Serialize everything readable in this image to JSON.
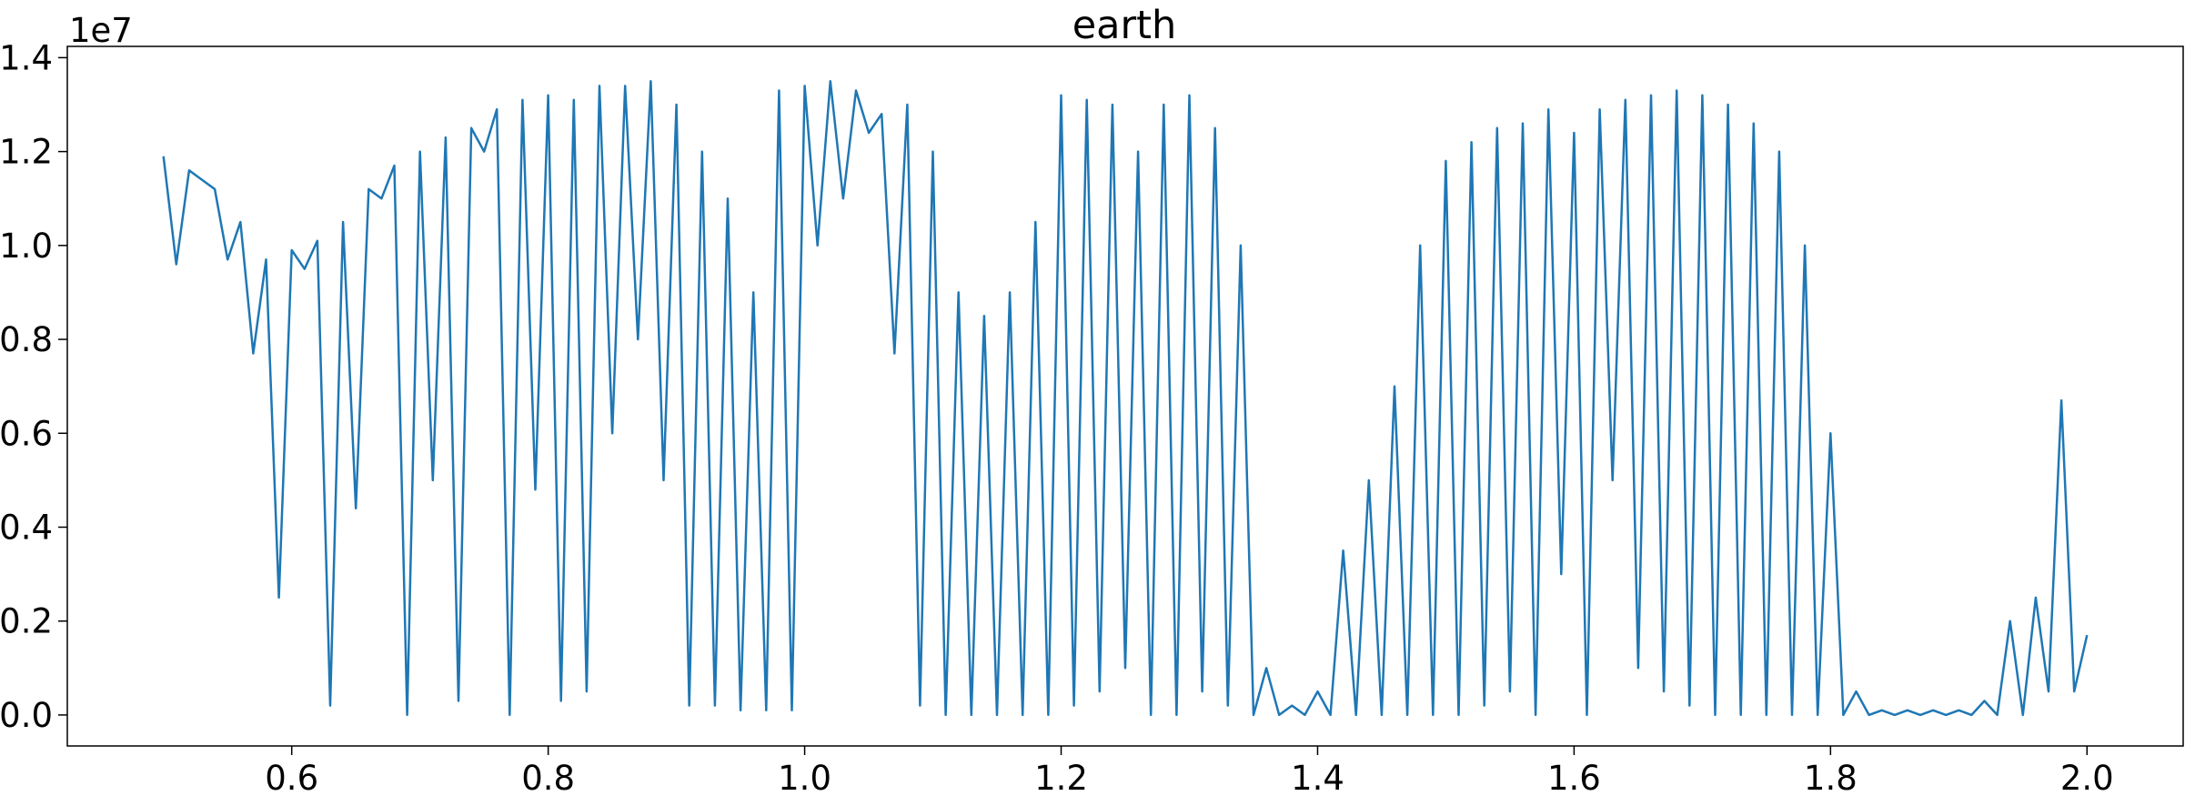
{
  "chart_data": {
    "type": "line",
    "title": "earth",
    "offset_label": "1e7",
    "x": [
      0.5,
      0.51,
      0.52,
      0.53,
      0.54,
      0.55,
      0.56,
      0.57,
      0.58,
      0.59,
      0.6,
      0.61,
      0.62,
      0.63,
      0.64,
      0.65,
      0.66,
      0.67,
      0.68,
      0.69,
      0.7,
      0.71,
      0.72,
      0.73,
      0.74,
      0.75,
      0.76,
      0.77,
      0.78,
      0.79,
      0.8,
      0.81,
      0.82,
      0.83,
      0.84,
      0.85,
      0.86,
      0.87,
      0.88,
      0.89,
      0.9,
      0.91,
      0.92,
      0.93,
      0.94,
      0.95,
      0.96,
      0.97,
      0.98,
      0.99,
      1.0,
      1.01,
      1.02,
      1.03,
      1.04,
      1.05,
      1.06,
      1.07,
      1.08,
      1.09,
      1.1,
      1.11,
      1.12,
      1.13,
      1.14,
      1.15,
      1.16,
      1.17,
      1.18,
      1.19,
      1.2,
      1.21,
      1.22,
      1.23,
      1.24,
      1.25,
      1.26,
      1.27,
      1.28,
      1.29,
      1.3,
      1.31,
      1.32,
      1.33,
      1.34,
      1.35,
      1.36,
      1.37,
      1.38,
      1.39,
      1.4,
      1.41,
      1.42,
      1.43,
      1.44,
      1.45,
      1.46,
      1.47,
      1.48,
      1.49,
      1.5,
      1.51,
      1.52,
      1.53,
      1.54,
      1.55,
      1.56,
      1.57,
      1.58,
      1.59,
      1.6,
      1.61,
      1.62,
      1.63,
      1.64,
      1.65,
      1.66,
      1.67,
      1.68,
      1.69,
      1.7,
      1.71,
      1.72,
      1.73,
      1.74,
      1.75,
      1.76,
      1.77,
      1.78,
      1.79,
      1.8,
      1.81,
      1.82,
      1.83,
      1.84,
      1.85,
      1.86,
      1.87,
      1.88,
      1.89,
      1.9,
      1.91,
      1.92,
      1.93,
      1.94,
      1.95,
      1.96,
      1.97,
      1.98,
      1.99,
      2.0
    ],
    "series": [
      {
        "color": "#1f77b4",
        "values": [
          1.19,
          0.96,
          1.16,
          1.14,
          1.12,
          0.97,
          1.05,
          0.77,
          0.97,
          0.25,
          0.99,
          0.95,
          1.01,
          0.02,
          1.05,
          0.44,
          1.12,
          1.1,
          1.17,
          0.0,
          1.2,
          0.5,
          1.23,
          0.03,
          1.25,
          1.2,
          1.29,
          0.0,
          1.31,
          0.48,
          1.32,
          0.03,
          1.31,
          0.05,
          1.34,
          0.6,
          1.34,
          0.8,
          1.35,
          0.5,
          1.3,
          0.02,
          1.2,
          0.02,
          1.1,
          0.01,
          0.9,
          0.01,
          1.33,
          0.01,
          1.34,
          1.0,
          1.35,
          1.1,
          1.33,
          1.24,
          1.28,
          0.77,
          1.3,
          0.02,
          1.2,
          0.0,
          0.9,
          0.0,
          0.85,
          0.0,
          0.9,
          0.0,
          1.05,
          0.0,
          1.32,
          0.02,
          1.31,
          0.05,
          1.3,
          0.1,
          1.2,
          0.0,
          1.3,
          0.0,
          1.32,
          0.05,
          1.25,
          0.02,
          1.0,
          0.0,
          0.1,
          0.0,
          0.02,
          0.0,
          0.05,
          0.0,
          0.35,
          0.0,
          0.5,
          0.0,
          0.7,
          0.0,
          1.0,
          0.0,
          1.18,
          0.0,
          1.22,
          0.02,
          1.25,
          0.05,
          1.26,
          0.0,
          1.29,
          0.3,
          1.24,
          0.0,
          1.29,
          0.5,
          1.31,
          0.1,
          1.32,
          0.05,
          1.33,
          0.02,
          1.32,
          0.0,
          1.3,
          0.0,
          1.26,
          0.0,
          1.2,
          0.0,
          1.0,
          0.0,
          0.6,
          0.0,
          0.05,
          0.0,
          0.01,
          0.0,
          0.01,
          0.0,
          0.01,
          0.0,
          0.01,
          0.0,
          0.03,
          0.0,
          0.2,
          0.0,
          0.25,
          0.05,
          0.67,
          0.05,
          0.17
        ]
      }
    ],
    "xlim": [
      0.425,
      2.075
    ],
    "xticks": [
      0.6,
      0.8,
      {
        "value": 1.0,
        "label": "1.0"
      },
      1.2,
      1.4,
      1.6,
      1.8,
      {
        "value": 2.0,
        "label": "2.0"
      }
    ],
    "ylim": [
      -0.066,
      1.424
    ],
    "yticks": [
      {
        "value": 0,
        "label": "0.0"
      },
      0.2,
      0.4,
      0.6,
      0.8,
      {
        "value": 1.0,
        "label": "1.0"
      },
      1.2,
      1.4
    ]
  }
}
